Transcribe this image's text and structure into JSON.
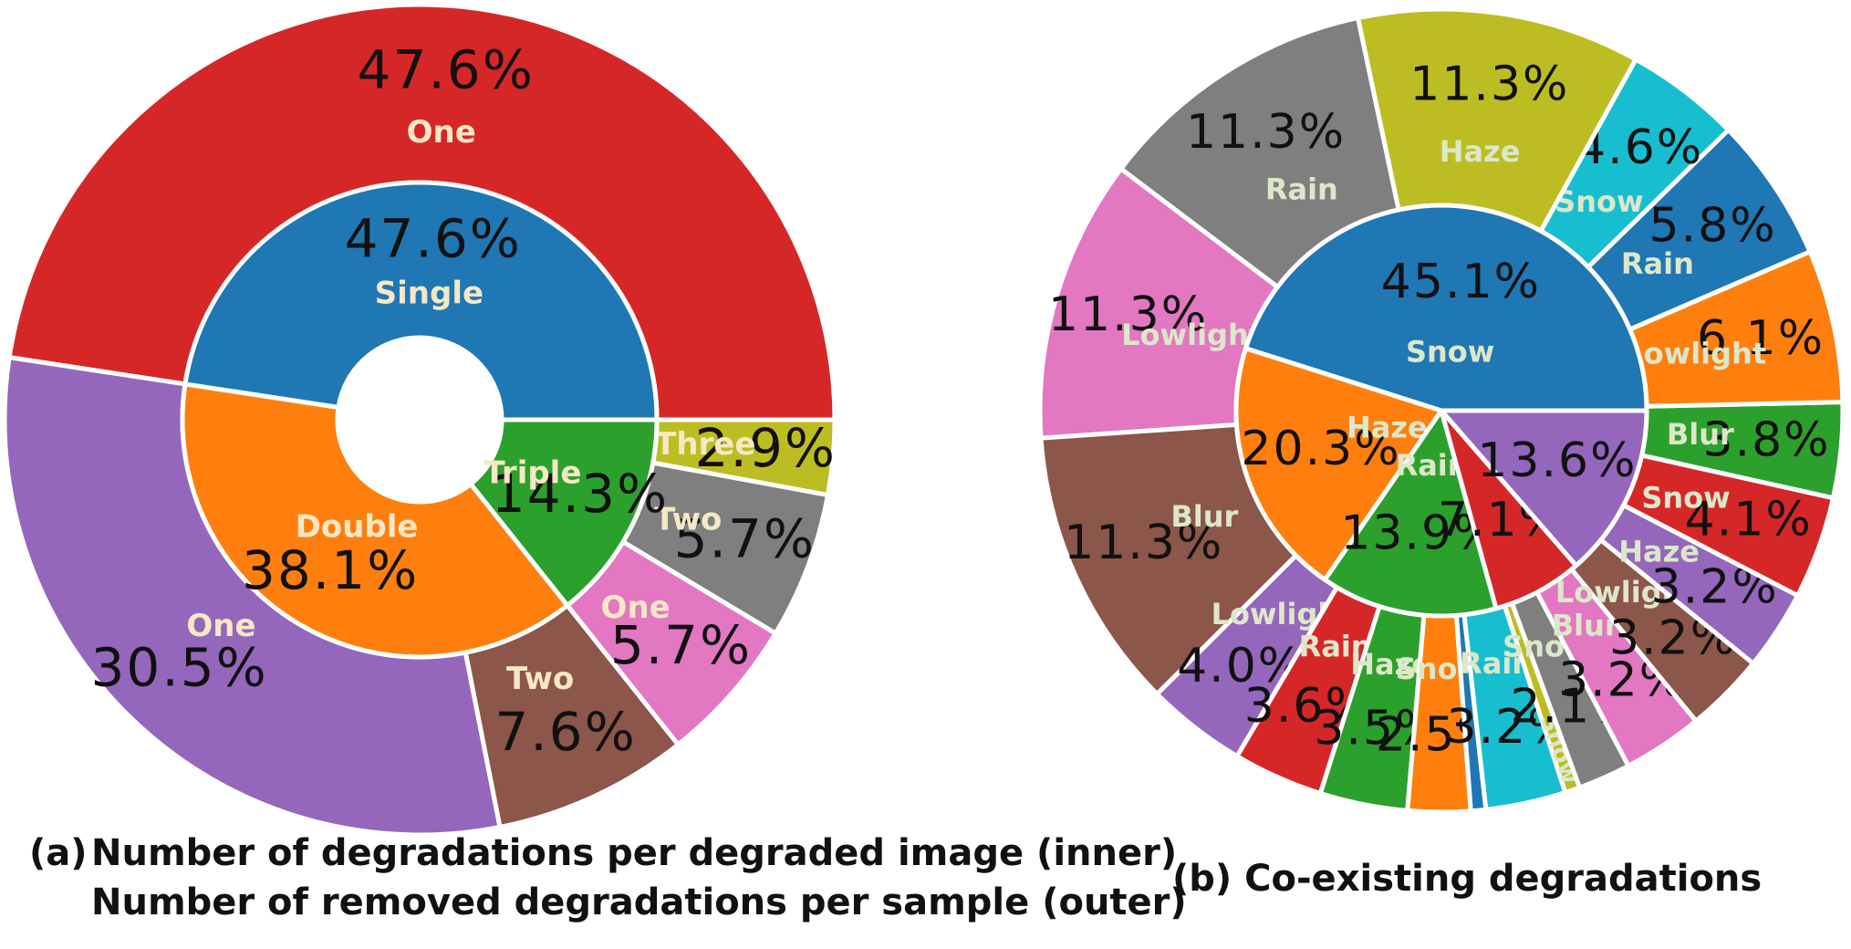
{
  "chart_data": [
    {
      "type": "pie",
      "subtype": "nested-donut",
      "caption_prefix": "(a)",
      "caption_line1": "Number of degradations per degraded image (inner)",
      "caption_line2": "Number of removed degradations per sample (outer)",
      "inner": [
        {
          "label": "Single",
          "value": 47.6,
          "value_text": "47.6%",
          "color": "#1f77b4"
        },
        {
          "label": "Double",
          "value": 38.1,
          "value_text": "38.1%",
          "color": "#ff7f0e"
        },
        {
          "label": "Triple",
          "value": 14.3,
          "value_text": "14.3%",
          "color": "#2ca02c"
        }
      ],
      "outer": [
        {
          "label": "One",
          "value": 47.6,
          "value_text": "47.6%",
          "color": "#d62728"
        },
        {
          "label": "One",
          "value": 30.5,
          "value_text": "30.5%",
          "color": "#9467bd"
        },
        {
          "label": "Two",
          "value": 7.6,
          "value_text": "7.6%",
          "color": "#8c564b"
        },
        {
          "label": "One",
          "value": 5.7,
          "value_text": "5.7%",
          "color": "#e377c2"
        },
        {
          "label": "Two",
          "value": 5.7,
          "value_text": "5.7%",
          "color": "#7f7f7f"
        },
        {
          "label": "Three",
          "value": 2.9,
          "value_text": "2.9%",
          "color": "#bcbd22"
        }
      ]
    },
    {
      "type": "pie",
      "subtype": "nested-donut",
      "caption": "(b) Co-existing degradations",
      "inner": [
        {
          "label": "Snow",
          "value": 45.1,
          "value_text": "45.1%",
          "color": "#1f77b4"
        },
        {
          "label": "Haze",
          "value": 20.3,
          "value_text": "20.3%",
          "color": "#ff7f0e"
        },
        {
          "label": "Rain",
          "value": 13.9,
          "value_text": "13.9%",
          "color": "#2ca02c"
        },
        {
          "label": "",
          "value": 7.1,
          "value_text": "7.1%",
          "color": "#d62728"
        },
        {
          "label": "",
          "value": 13.6,
          "value_text": "13.6%",
          "color": "#9467bd"
        }
      ],
      "outer": [
        {
          "label": "Rain",
          "value": 11.3,
          "value_text": "11.3%",
          "color": "#7f7f7f"
        },
        {
          "label": "Lowlight",
          "value": 11.3,
          "value_text": "11.3%",
          "color": "#e377c2"
        },
        {
          "label": "Blur",
          "value": 11.3,
          "value_text": "11.3%",
          "color": "#8c564b"
        },
        {
          "label": "Lowlight",
          "value": 4.0,
          "value_text": "4.0%",
          "color": "#9467bd"
        },
        {
          "label": "Rain",
          "value": 3.6,
          "value_text": "3.6%",
          "color": "#d62728"
        },
        {
          "label": "Haze",
          "value": 3.5,
          "value_text": "3.5%",
          "color": "#2ca02c"
        },
        {
          "label": "Snow",
          "value": 2.5,
          "value_text": "2.5%",
          "color": "#ff7f0e"
        },
        {
          "label": "",
          "value": 0.6,
          "value_text": "",
          "color": "#1f77b4"
        },
        {
          "label": "Rain",
          "value": 3.2,
          "value_text": "3.2%",
          "color": "#17becf"
        },
        {
          "label": "Snow",
          "value": 0.6,
          "value_text": "",
          "color": "#bcbd22"
        },
        {
          "label": "Snow",
          "value": 2.1,
          "value_text": "2.1%",
          "color": "#7f7f7f"
        },
        {
          "label": "Blur",
          "value": 3.2,
          "value_text": "3.2%",
          "color": "#e377c2"
        },
        {
          "label": "Lowlight",
          "value": 3.2,
          "value_text": "3.2%",
          "color": "#8c564b"
        },
        {
          "label": "Haze",
          "value": 3.2,
          "value_text": "3.2%",
          "color": "#9467bd"
        },
        {
          "label": "Snow",
          "value": 4.1,
          "value_text": "4.1%",
          "color": "#d62728"
        },
        {
          "label": "Blur",
          "value": 3.8,
          "value_text": "3.8%",
          "color": "#2ca02c"
        },
        {
          "label": "Lowlight",
          "value": 6.1,
          "value_text": "6.1%",
          "color": "#ff7f0e"
        },
        {
          "label": "Rain",
          "value": 5.8,
          "value_text": "5.8%",
          "color": "#1f77b4"
        },
        {
          "label": "Snow",
          "value": 4.6,
          "value_text": "4.6%",
          "color": "#17becf"
        },
        {
          "label": "Haze",
          "value": 11.3,
          "value_text": "11.3%",
          "color": "#bcbd22"
        }
      ]
    }
  ]
}
